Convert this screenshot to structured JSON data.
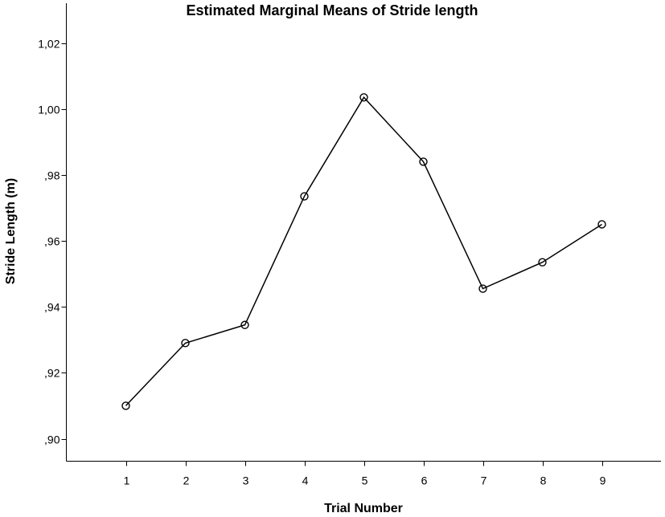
{
  "chart_data": {
    "type": "line",
    "title": "Estimated Marginal Means of Stride length",
    "xlabel": "Trial Number",
    "ylabel": "Stride Length (m)",
    "categories": [
      "1",
      "2",
      "3",
      "4",
      "5",
      "6",
      "7",
      "8",
      "9"
    ],
    "values": [
      0.91,
      0.929,
      0.9345,
      0.9735,
      1.0035,
      0.984,
      0.9455,
      0.9535,
      0.965
    ],
    "ylim": [
      0.895,
      1.027
    ],
    "yticks": [
      0.9,
      0.92,
      0.94,
      0.96,
      0.98,
      1.0,
      1.02
    ],
    "ytick_labels": [
      ",90",
      ",92",
      ",94",
      ",96",
      ",98",
      "1,00",
      "1,02"
    ],
    "grid": false,
    "legend": "none",
    "marker": "open-circle",
    "colors": {
      "line": "#000000",
      "axis": "#000000",
      "background": "#ffffff"
    }
  }
}
